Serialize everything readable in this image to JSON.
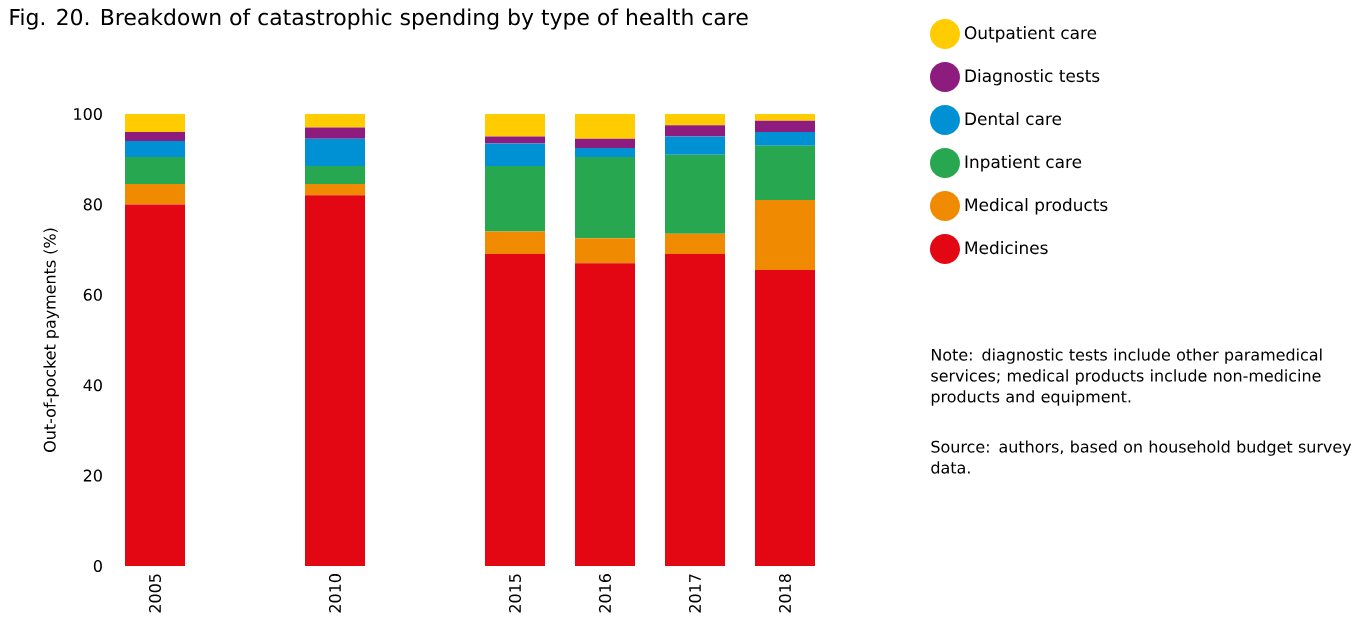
{
  "chart_data": {
    "type": "bar",
    "stacked": true,
    "title": "Fig. 20. Breakdown of catastrophic spending by type of health care",
    "ylabel": "Out-of-pocket payments (%)",
    "categories": [
      "2005",
      null,
      "2010",
      null,
      "2015",
      "2016",
      "2017",
      "2018"
    ],
    "ylim": [
      0,
      100
    ],
    "yticks": [
      0,
      20,
      40,
      60,
      80,
      100
    ],
    "legend": "right",
    "series": [
      {
        "name": "Medicines",
        "color": "#e30613",
        "values": [
          80,
          null,
          82,
          null,
          69,
          67,
          69,
          65.5
        ]
      },
      {
        "name": "Medical products",
        "color": "#f08a00",
        "values": [
          4.5,
          null,
          2.5,
          null,
          5,
          5.5,
          4.5,
          15.5
        ]
      },
      {
        "name": "Inpatient care",
        "color": "#27a74f",
        "values": [
          6,
          null,
          4,
          null,
          14.5,
          18,
          17.5,
          12
        ]
      },
      {
        "name": "Dental care",
        "color": "#0091d4",
        "values": [
          3.5,
          null,
          6,
          null,
          5,
          2,
          4,
          3
        ]
      },
      {
        "name": "Diagnostic tests",
        "color": "#8e1b7e",
        "values": [
          2,
          null,
          2.5,
          null,
          1.5,
          2,
          2.5,
          2.5
        ]
      },
      {
        "name": "Outpatient care",
        "color": "#ffcc00",
        "values": [
          4,
          null,
          3,
          null,
          5,
          5.5,
          2.5,
          1.5
        ]
      }
    ],
    "annotations": [
      "Note: diagnostic tests include other paramedical services; medical products include non-medicine products and equipment.",
      "Source: authors, based on household budget survey data."
    ]
  }
}
